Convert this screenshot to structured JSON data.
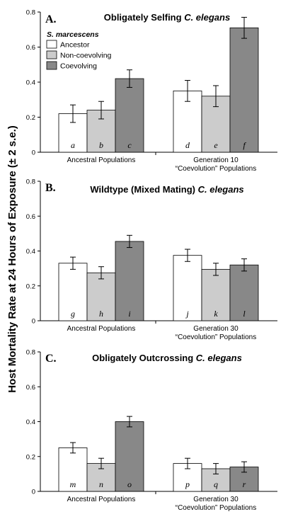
{
  "figure": {
    "y_axis_label": "Host Mortality Rate at 24 Hours of Exposure (± 2 s.e.)",
    "legend": {
      "title": "S. marcescens",
      "entries": [
        "Ancestor",
        "Non-coevolving",
        "Coevolving"
      ]
    },
    "colors": {
      "Ancestor": "#ffffff",
      "Non-coevolving": "#cccccc",
      "Coevolving": "#888888"
    }
  },
  "chart_data": [
    {
      "type": "bar",
      "panel": "A.",
      "title_prefix": "Obligately Selfing ",
      "title_italic": "C. elegans",
      "ylim": [
        0,
        0.8
      ],
      "yticks": [
        "0",
        "0.2",
        "0.4",
        "0.6",
        "0.8"
      ],
      "categories": [
        [
          "Ancestral Populations"
        ],
        [
          "Generation 10",
          "“Coevolution” Populations"
        ]
      ],
      "series": [
        {
          "name": "Ancestor",
          "values": [
            0.22,
            0.35
          ],
          "errors": [
            0.05,
            0.06
          ],
          "labels": [
            "a",
            "d"
          ]
        },
        {
          "name": "Non-coevolving",
          "values": [
            0.24,
            0.32
          ],
          "errors": [
            0.05,
            0.06
          ],
          "labels": [
            "b",
            "e"
          ]
        },
        {
          "name": "Coevolving",
          "values": [
            0.42,
            0.71
          ],
          "errors": [
            0.05,
            0.06
          ],
          "labels": [
            "c",
            "f"
          ]
        }
      ]
    },
    {
      "type": "bar",
      "panel": "B.",
      "title_prefix": "Wildtype (Mixed Mating) ",
      "title_italic": "C. elegans",
      "ylim": [
        0,
        0.8
      ],
      "yticks": [
        "0",
        "0.2",
        "0.4",
        "0.6",
        "0.8"
      ],
      "categories": [
        [
          "Ancestral Populations"
        ],
        [
          "Generation 30",
          "“Coevolution” Populations"
        ]
      ],
      "series": [
        {
          "name": "Ancestor",
          "values": [
            0.33,
            0.375
          ],
          "errors": [
            0.035,
            0.035
          ],
          "labels": [
            "g",
            "j"
          ]
        },
        {
          "name": "Non-coevolving",
          "values": [
            0.275,
            0.295
          ],
          "errors": [
            0.035,
            0.035
          ],
          "labels": [
            "h",
            "k"
          ]
        },
        {
          "name": "Coevolving",
          "values": [
            0.455,
            0.32
          ],
          "errors": [
            0.035,
            0.035
          ],
          "labels": [
            "i",
            "l"
          ]
        }
      ]
    },
    {
      "type": "bar",
      "panel": "C.",
      "title_prefix": "Obligately Outcrossing ",
      "title_italic": "C. elegans",
      "ylim": [
        0,
        0.8
      ],
      "yticks": [
        "0",
        "0.2",
        "0.4",
        "0.6",
        "0.8"
      ],
      "categories": [
        [
          "Ancestral Populations"
        ],
        [
          "Generation 30",
          "“Coevolution” Populations"
        ]
      ],
      "series": [
        {
          "name": "Ancestor",
          "values": [
            0.25,
            0.16
          ],
          "errors": [
            0.03,
            0.03
          ],
          "labels": [
            "m",
            "p"
          ]
        },
        {
          "name": "Non-coevolving",
          "values": [
            0.16,
            0.13
          ],
          "errors": [
            0.03,
            0.03
          ],
          "labels": [
            "n",
            "q"
          ]
        },
        {
          "name": "Coevolving",
          "values": [
            0.4,
            0.14
          ],
          "errors": [
            0.03,
            0.03
          ],
          "labels": [
            "o",
            "r"
          ]
        }
      ]
    }
  ]
}
